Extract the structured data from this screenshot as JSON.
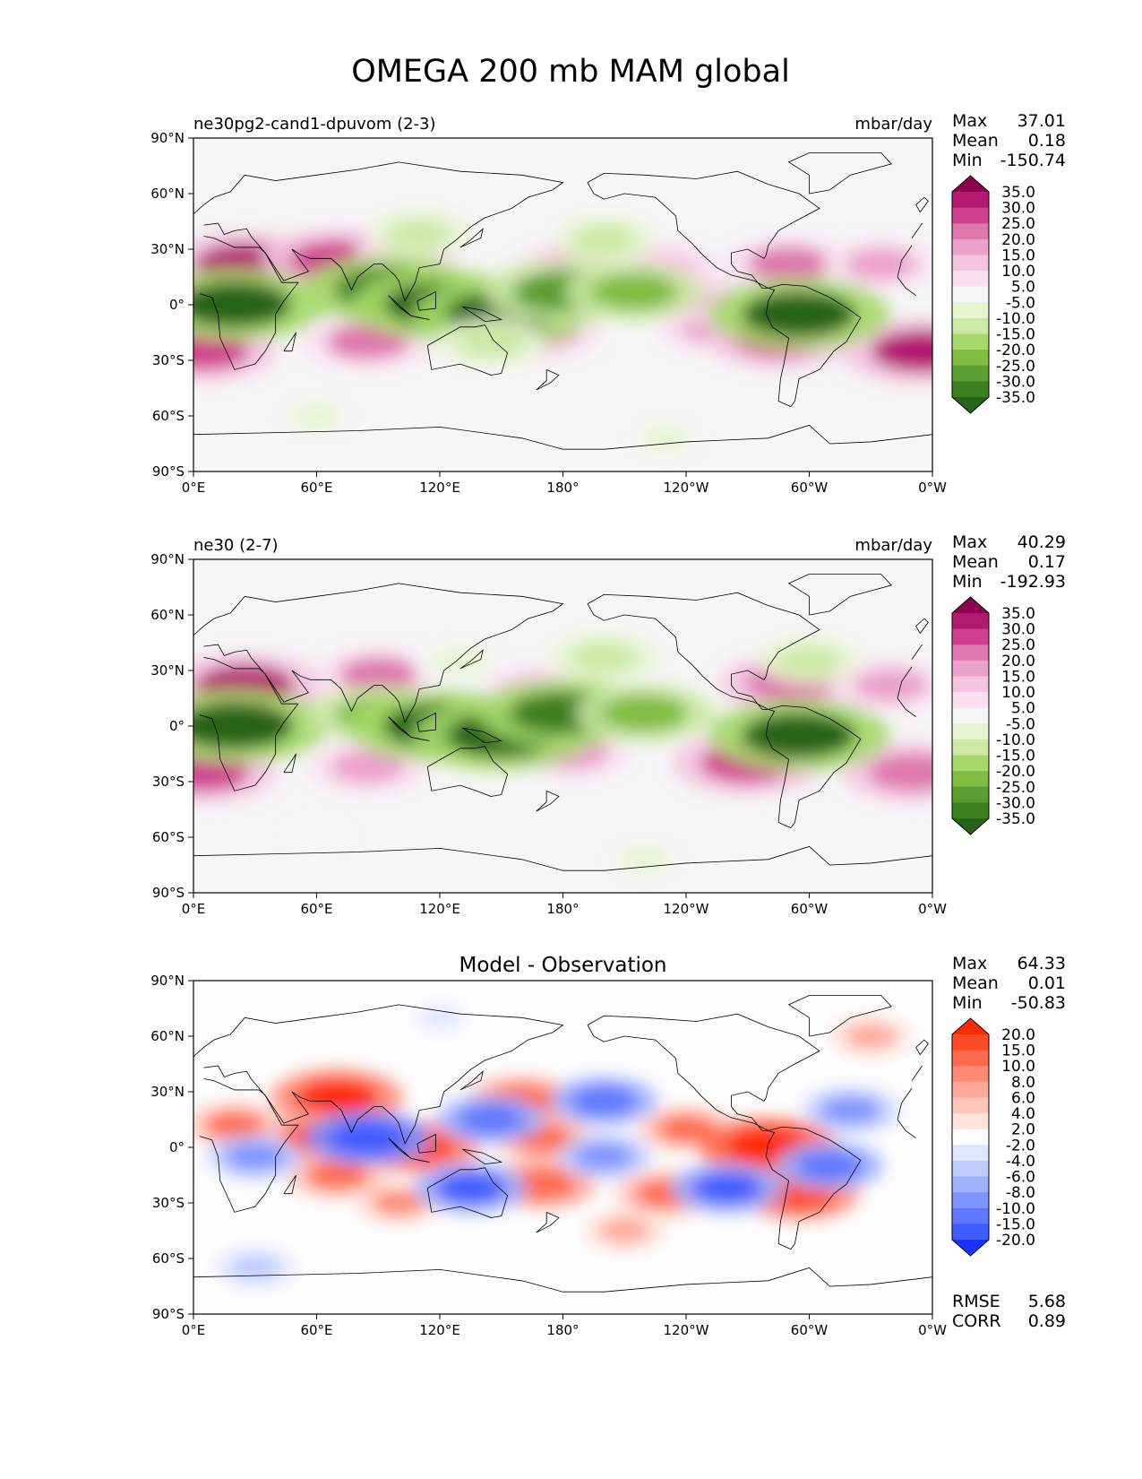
{
  "chart_data": {
    "type": "heatmap",
    "title": "OMEGA 200 mb MAM global",
    "x_ticks": [
      "0°E",
      "60°E",
      "120°E",
      "180°",
      "120°W",
      "60°W",
      "0°W"
    ],
    "y_ticks": [
      "90°N",
      "60°N",
      "30°N",
      "0°",
      "30°S",
      "60°S",
      "90°S"
    ],
    "panels": [
      {
        "left_title": "ne30pg2-cand1-dpuvom (2-3)",
        "center_title": "",
        "units": "mbar/day",
        "stats": [
          {
            "label": "Max",
            "value": "37.01"
          },
          {
            "label": "Mean",
            "value": "0.18"
          },
          {
            "label": "Min",
            "value": "-150.74"
          }
        ],
        "colorbar": {
          "colormap": "PiYG_r",
          "levels": [
            "35.0",
            "30.0",
            "25.0",
            "20.0",
            "15.0",
            "10.0",
            "5.0",
            "-5.0",
            "-10.0",
            "-15.0",
            "-20.0",
            "-25.0",
            "-30.0",
            "-35.0"
          ],
          "colors": [
            "#8e0152",
            "#b3196f",
            "#cf3f8e",
            "#de77ae",
            "#eaa1cb",
            "#f4c4e0",
            "#fae0ef",
            "#f6f6f6",
            "#e6f5d0",
            "#cbe8a4",
            "#a6d96a",
            "#7fbc41",
            "#5a9e2f",
            "#3c7f21",
            "#276419"
          ]
        },
        "blobs": [
          {
            "lon": 25,
            "lat": 22,
            "value": 30
          },
          {
            "lon": 70,
            "lat": 24,
            "value": 28
          },
          {
            "lon": 105,
            "lat": 28,
            "value": 14
          },
          {
            "lon": 185,
            "lat": 20,
            "value": 18
          },
          {
            "lon": 230,
            "lat": 20,
            "value": 14
          },
          {
            "lon": 290,
            "lat": 22,
            "value": 22
          },
          {
            "lon": 335,
            "lat": 22,
            "value": 16
          },
          {
            "lon": 5,
            "lat": -25,
            "value": 26
          },
          {
            "lon": 85,
            "lat": -20,
            "value": 22
          },
          {
            "lon": 170,
            "lat": -15,
            "value": 18
          },
          {
            "lon": 255,
            "lat": -12,
            "value": 18
          },
          {
            "lon": 285,
            "lat": -18,
            "value": 26
          },
          {
            "lon": 355,
            "lat": -25,
            "value": 32
          },
          {
            "lon": 245,
            "lat": 3,
            "value": 14
          },
          {
            "lon": 20,
            "lat": 0,
            "value": -38
          },
          {
            "lon": 95,
            "lat": 8,
            "value": -35
          },
          {
            "lon": 120,
            "lat": 0,
            "value": -36
          },
          {
            "lon": 150,
            "lat": -5,
            "value": -36
          },
          {
            "lon": 180,
            "lat": 7,
            "value": -30
          },
          {
            "lon": 215,
            "lat": 7,
            "value": -24
          },
          {
            "lon": 295,
            "lat": -5,
            "value": -38
          },
          {
            "lon": 110,
            "lat": 38,
            "value": -12
          },
          {
            "lon": 200,
            "lat": 35,
            "value": -12
          },
          {
            "lon": 60,
            "lat": -60,
            "value": -6
          },
          {
            "lon": 230,
            "lat": -72,
            "value": -6
          },
          {
            "lon": 145,
            "lat": -20,
            "value": -14
          }
        ]
      },
      {
        "left_title": "ne30 (2-7)",
        "center_title": "",
        "units": "mbar/day",
        "stats": [
          {
            "label": "Max",
            "value": "40.29"
          },
          {
            "label": "Mean",
            "value": "0.17"
          },
          {
            "label": "Min",
            "value": "-192.93"
          }
        ],
        "colorbar": {
          "colormap": "PiYG_r",
          "levels": [
            "35.0",
            "30.0",
            "25.0",
            "20.0",
            "15.0",
            "10.0",
            "5.0",
            "-5.0",
            "-10.0",
            "-15.0",
            "-20.0",
            "-25.0",
            "-30.0",
            "-35.0"
          ],
          "colors": [
            "#8e0152",
            "#b3196f",
            "#cf3f8e",
            "#de77ae",
            "#eaa1cb",
            "#f4c4e0",
            "#fae0ef",
            "#f6f6f6",
            "#e6f5d0",
            "#cbe8a4",
            "#a6d96a",
            "#7fbc41",
            "#5a9e2f",
            "#3c7f21",
            "#276419"
          ]
        },
        "blobs": [
          {
            "lon": 25,
            "lat": 22,
            "value": 30
          },
          {
            "lon": 90,
            "lat": 28,
            "value": 20
          },
          {
            "lon": 290,
            "lat": 23,
            "value": 24
          },
          {
            "lon": 340,
            "lat": 22,
            "value": 18
          },
          {
            "lon": 5,
            "lat": -25,
            "value": 26
          },
          {
            "lon": 85,
            "lat": -22,
            "value": 18
          },
          {
            "lon": 185,
            "lat": -15,
            "value": 16
          },
          {
            "lon": 270,
            "lat": -20,
            "value": 28
          },
          {
            "lon": 350,
            "lat": -25,
            "value": 24
          },
          {
            "lon": 165,
            "lat": 20,
            "value": 12
          },
          {
            "lon": 20,
            "lat": 0,
            "value": -40
          },
          {
            "lon": 90,
            "lat": 6,
            "value": -24
          },
          {
            "lon": 120,
            "lat": 0,
            "value": -38
          },
          {
            "lon": 150,
            "lat": -5,
            "value": -36
          },
          {
            "lon": 180,
            "lat": 7,
            "value": -34
          },
          {
            "lon": 220,
            "lat": 7,
            "value": -24
          },
          {
            "lon": 295,
            "lat": -5,
            "value": -38
          },
          {
            "lon": 200,
            "lat": 37,
            "value": -14
          },
          {
            "lon": 130,
            "lat": 35,
            "value": -10
          },
          {
            "lon": 300,
            "lat": 35,
            "value": -12
          },
          {
            "lon": 220,
            "lat": -72,
            "value": -6
          },
          {
            "lon": 60,
            "lat": -58,
            "value": -5
          }
        ]
      },
      {
        "left_title": "",
        "center_title": "Model - Observation",
        "units": "",
        "stats": [
          {
            "label": "Max",
            "value": "64.33"
          },
          {
            "label": "Mean",
            "value": "0.01"
          },
          {
            "label": "Min",
            "value": "-50.83"
          }
        ],
        "bottom_stats": [
          {
            "label": "RMSE",
            "value": "5.68"
          },
          {
            "label": "CORR",
            "value": "0.89"
          }
        ],
        "colorbar": {
          "colormap": "bwr",
          "levels": [
            "20.0",
            "15.0",
            "10.0",
            "8.0",
            "6.0",
            "4.0",
            "2.0",
            "-2.0",
            "-4.0",
            "-6.0",
            "-8.0",
            "-10.0",
            "-15.0",
            "-20.0"
          ],
          "colors": [
            "#ff2a00",
            "#ff4a26",
            "#ff6a4d",
            "#ff8a73",
            "#ffa899",
            "#ffc6bb",
            "#ffe2dc",
            "#fdfdfd",
            "#dfe6ff",
            "#c0ccff",
            "#9fb0ff",
            "#7f94ff",
            "#5f78ff",
            "#3f5cff",
            "#1a33ff"
          ]
        },
        "blobs": [
          {
            "lon": 70,
            "lat": 27,
            "value": 22
          },
          {
            "lon": 60,
            "lat": 5,
            "value": 16
          },
          {
            "lon": 20,
            "lat": 12,
            "value": 10
          },
          {
            "lon": 160,
            "lat": 25,
            "value": 14
          },
          {
            "lon": 170,
            "lat": 5,
            "value": 12
          },
          {
            "lon": 240,
            "lat": 10,
            "value": 10
          },
          {
            "lon": 170,
            "lat": -20,
            "value": 14
          },
          {
            "lon": 230,
            "lat": -25,
            "value": 12
          },
          {
            "lon": 100,
            "lat": -30,
            "value": 8
          },
          {
            "lon": 70,
            "lat": -15,
            "value": 12
          },
          {
            "lon": 110,
            "lat": 0,
            "value": 18
          },
          {
            "lon": 280,
            "lat": 0,
            "value": 24
          },
          {
            "lon": 295,
            "lat": -25,
            "value": 18
          },
          {
            "lon": 330,
            "lat": 60,
            "value": 6
          },
          {
            "lon": 210,
            "lat": -45,
            "value": 6
          },
          {
            "lon": 30,
            "lat": -65,
            "value": -5
          },
          {
            "lon": 85,
            "lat": 5,
            "value": -20
          },
          {
            "lon": 135,
            "lat": -22,
            "value": -16
          },
          {
            "lon": 145,
            "lat": 15,
            "value": -14
          },
          {
            "lon": 200,
            "lat": 25,
            "value": -14
          },
          {
            "lon": 260,
            "lat": -22,
            "value": -16
          },
          {
            "lon": 200,
            "lat": -5,
            "value": -10
          },
          {
            "lon": 310,
            "lat": -10,
            "value": -14
          },
          {
            "lon": 320,
            "lat": 20,
            "value": -10
          },
          {
            "lon": 30,
            "lat": -5,
            "value": -10
          },
          {
            "lon": 120,
            "lat": 70,
            "value": -4
          }
        ]
      }
    ]
  }
}
